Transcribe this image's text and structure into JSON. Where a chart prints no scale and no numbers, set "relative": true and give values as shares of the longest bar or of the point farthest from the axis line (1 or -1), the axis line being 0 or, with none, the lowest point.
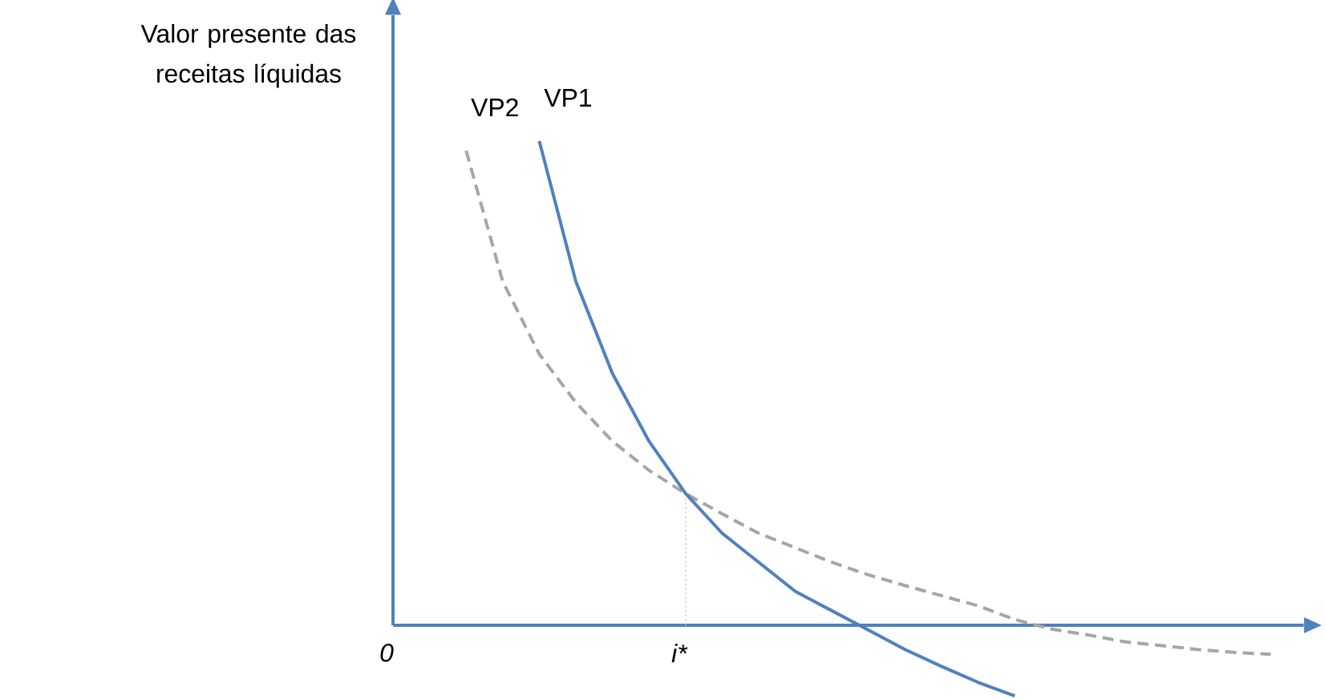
{
  "chart_data": {
    "type": "line",
    "relative": true,
    "ylabel": "Valor presente das receitas líquidas",
    "categories": [
      "0",
      null,
      null,
      null,
      null,
      null,
      null,
      null,
      "i*",
      null,
      null,
      null,
      null,
      null,
      null,
      null,
      null,
      null,
      null,
      null,
      null,
      null,
      null,
      null,
      null
    ],
    "ref_lines": [
      {
        "axis": "x",
        "value": "i*",
        "color": "#bfbfbf",
        "line_style": "dotted"
      }
    ],
    "series": [
      {
        "name": "VP2",
        "color": "#a6a6a6",
        "line_style": "dashed",
        "values": [
          null,
          null,
          0.98,
          0.71,
          0.56,
          0.46,
          0.38,
          0.32,
          0.272,
          0.23,
          0.19,
          0.16,
          0.13,
          0.104,
          0.082,
          0.061,
          0.04,
          0.012,
          -0.008,
          -0.02,
          -0.034,
          -0.042,
          -0.05,
          -0.056,
          -0.06
        ]
      },
      {
        "name": "VP1",
        "color": "#4f81bd",
        "line_style": "solid",
        "values": [
          null,
          null,
          null,
          null,
          1.0,
          0.71,
          0.52,
          0.38,
          0.272,
          0.19,
          0.13,
          0.07,
          0.03,
          -0.01,
          -0.05,
          -0.085,
          -0.118,
          -0.146,
          null,
          null,
          null,
          null,
          null,
          null,
          null
        ]
      }
    ]
  }
}
